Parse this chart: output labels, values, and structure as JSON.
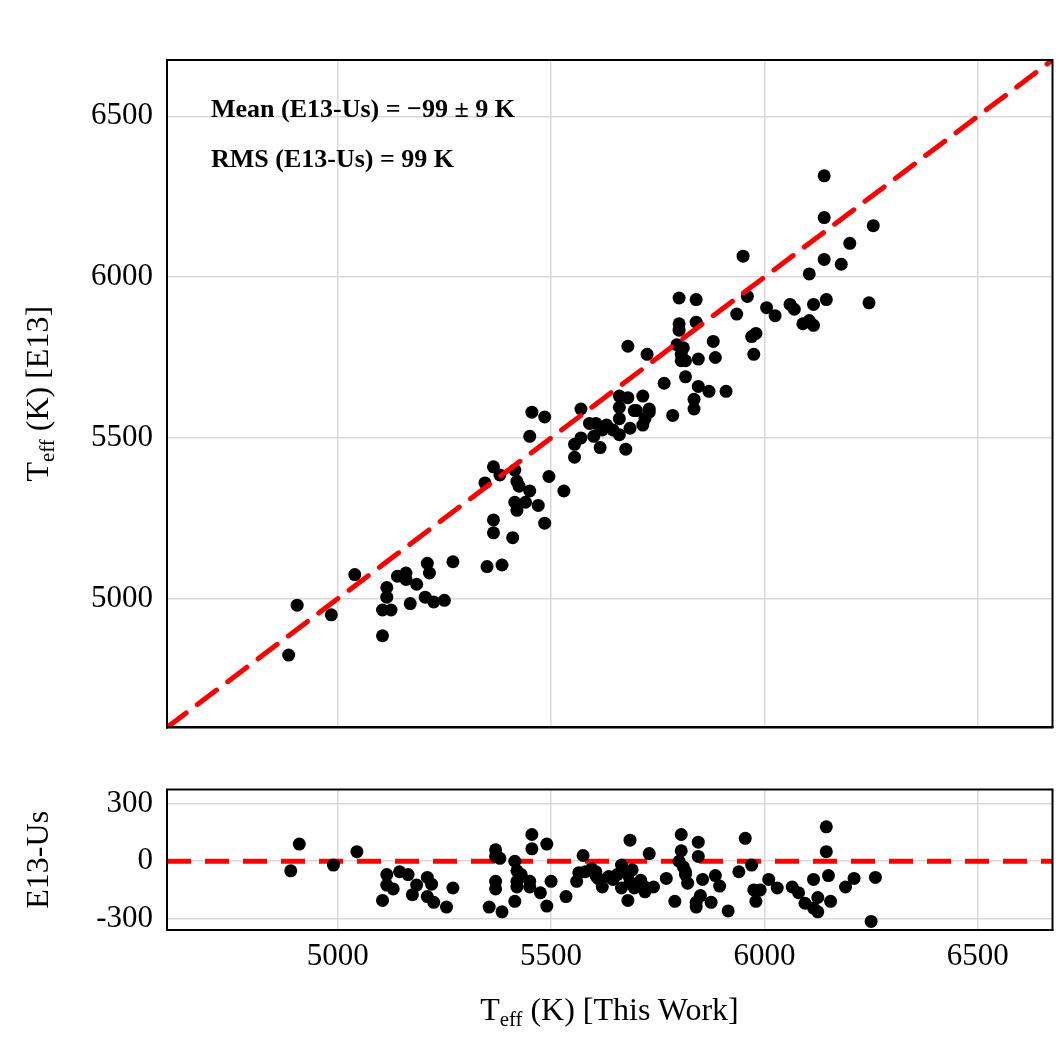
{
  "chart_data": [
    {
      "type": "scatter",
      "ylabel": "T$_{eff}$ (K) [E13]",
      "grid": true,
      "tick_labels": "y",
      "xlim": [
        4600,
        6675
      ],
      "ylim": [
        4600,
        6675
      ],
      "xticks": [
        5000,
        5500,
        6000,
        6500
      ],
      "yticks": [
        5000,
        5500,
        6000,
        6500
      ],
      "annotations": [
        "Mean (E13-Us) = −99 ± 9 K",
        "RMS (E13-Us) = 99 K"
      ],
      "series": [
        {
          "type": "scatter",
          "marker": "circle",
          "color": "#000000",
          "x": [
            4905,
            4885,
            4985,
            5040,
            5105,
            5115,
            5115,
            5105,
            5125,
            5140,
            5160,
            5160,
            5185,
            5170,
            5205,
            5225,
            5250,
            5210,
            5215,
            5270,
            5350,
            5385,
            5365,
            5365,
            5410,
            5345,
            5365,
            5380,
            5415,
            5420,
            5425,
            5450,
            5415,
            5420,
            5440,
            5470,
            5485,
            5495,
            5530,
            5450,
            5455,
            5485,
            5555,
            5555,
            5570,
            5570,
            5590,
            5605,
            5600,
            5615,
            5620,
            5630,
            5645,
            5660,
            5680,
            5660,
            5660,
            5660,
            5675,
            5695,
            5700,
            5685,
            5715,
            5730,
            5730,
            5720,
            5715,
            5680,
            5725,
            5765,
            5785,
            5800,
            5840,
            5800,
            5800,
            5840,
            5795,
            5810,
            5805,
            5805,
            5815,
            5845,
            5815,
            5845,
            5870,
            5910,
            5835,
            5835,
            5880,
            5885,
            5935,
            5960,
            6005,
            6025,
            5970,
            5980,
            5975,
            6060,
            6070,
            6115,
            6145,
            6245,
            6090,
            6105,
            6115,
            6105,
            6140,
            6140,
            6255,
            6200,
            6140,
            6180,
            5950
          ],
          "values": [
            4980,
            4825,
            4950,
            5075,
            4885,
            5035,
            5005,
            4965,
            4965,
            5070,
            5080,
            5060,
            5045,
            4985,
            5005,
            4990,
            4995,
            5110,
            5080,
            5115,
            5100,
            5105,
            5245,
            5205,
            5190,
            5360,
            5410,
            5385,
            5400,
            5365,
            5350,
            5335,
            5300,
            5275,
            5300,
            5290,
            5235,
            5380,
            5335,
            5505,
            5580,
            5565,
            5440,
            5480,
            5500,
            5590,
            5545,
            5545,
            5505,
            5470,
            5525,
            5540,
            5525,
            5630,
            5625,
            5595,
            5560,
            5510,
            5465,
            5585,
            5585,
            5530,
            5630,
            5590,
            5580,
            5560,
            5540,
            5785,
            5760,
            5670,
            5570,
            5935,
            5930,
            5855,
            5835,
            5860,
            5790,
            5780,
            5760,
            5740,
            5740,
            5745,
            5690,
            5660,
            5645,
            5645,
            5620,
            5590,
            5800,
            5750,
            5885,
            5940,
            5905,
            5880,
            5815,
            5825,
            5760,
            5915,
            5900,
            5915,
            5930,
            5920,
            5855,
            5865,
            5850,
            6010,
            6315,
            6185,
            6160,
            6105,
            6055,
            6040,
            6065
          ]
        },
        {
          "type": "line",
          "color": "#ff0000",
          "line_style": "dashed",
          "x": [
            4600,
            6675
          ],
          "values": [
            4600,
            6675
          ]
        }
      ]
    },
    {
      "type": "scatter",
      "color": "#000000",
      "marker": "circle",
      "grid": true,
      "xlabel": "T$_{eff}$ (K) [This Work]",
      "ylabel": "E13-Us",
      "xlim": [
        4600,
        6675
      ],
      "ylim": [
        -360,
        375
      ],
      "xticks": [
        5000,
        5500,
        6000,
        6500
      ],
      "yticks": [
        300,
        0,
        -300
      ],
      "ref_lines": [
        {
          "axis": "y",
          "value": 0,
          "color": "#ff0000",
          "line_style": "dashed"
        }
      ],
      "x": [
        4890,
        4910,
        4990,
        5045,
        5105,
        5115,
        5115,
        5130,
        5145,
        5165,
        5175,
        5185,
        5210,
        5210,
        5220,
        5225,
        5255,
        5270,
        5355,
        5370,
        5370,
        5370,
        5370,
        5380,
        5385,
        5415,
        5415,
        5420,
        5420,
        5420,
        5430,
        5450,
        5450,
        5455,
        5455,
        5475,
        5490,
        5490,
        5500,
        5535,
        5560,
        5565,
        5575,
        5580,
        5595,
        5605,
        5605,
        5610,
        5620,
        5635,
        5645,
        5655,
        5665,
        5665,
        5680,
        5680,
        5685,
        5685,
        5690,
        5695,
        5710,
        5720,
        5720,
        5730,
        5740,
        5770,
        5790,
        5800,
        5805,
        5805,
        5810,
        5815,
        5815,
        5820,
        5840,
        5840,
        5845,
        5845,
        5850,
        5855,
        5875,
        5885,
        5895,
        5915,
        5940,
        5955,
        5970,
        5975,
        5980,
        5990,
        6010,
        6030,
        6065,
        6080,
        6095,
        6115,
        6115,
        6125,
        6125,
        6145,
        6145,
        6150,
        6155,
        6190,
        6210,
        6250,
        6260
      ],
      "values": [
        -50,
        90,
        -20,
        50,
        -205,
        -125,
        -70,
        -145,
        -55,
        -70,
        -175,
        -125,
        -185,
        -85,
        -120,
        -215,
        -240,
        -140,
        -240,
        25,
        60,
        -105,
        -145,
        15,
        -265,
        -210,
        0,
        -50,
        -105,
        -135,
        -70,
        -135,
        -105,
        65,
        140,
        -165,
        90,
        -235,
        -105,
        -185,
        -105,
        -60,
        30,
        -55,
        -40,
        -55,
        -75,
        -90,
        -135,
        -80,
        -95,
        -70,
        -20,
        -140,
        -205,
        -70,
        -110,
        110,
        -45,
        -140,
        -100,
        -160,
        -135,
        40,
        -135,
        -90,
        -210,
        0,
        140,
        55,
        -30,
        -55,
        -70,
        -115,
        -215,
        -240,
        100,
        25,
        -180,
        -95,
        -215,
        -75,
        -130,
        -260,
        -55,
        120,
        -20,
        -150,
        -210,
        -150,
        -95,
        -140,
        -135,
        -165,
        -220,
        -95,
        -245,
        -190,
        -265,
        180,
        50,
        -75,
        -210,
        -135,
        -90,
        -315,
        -85
      ]
    }
  ]
}
